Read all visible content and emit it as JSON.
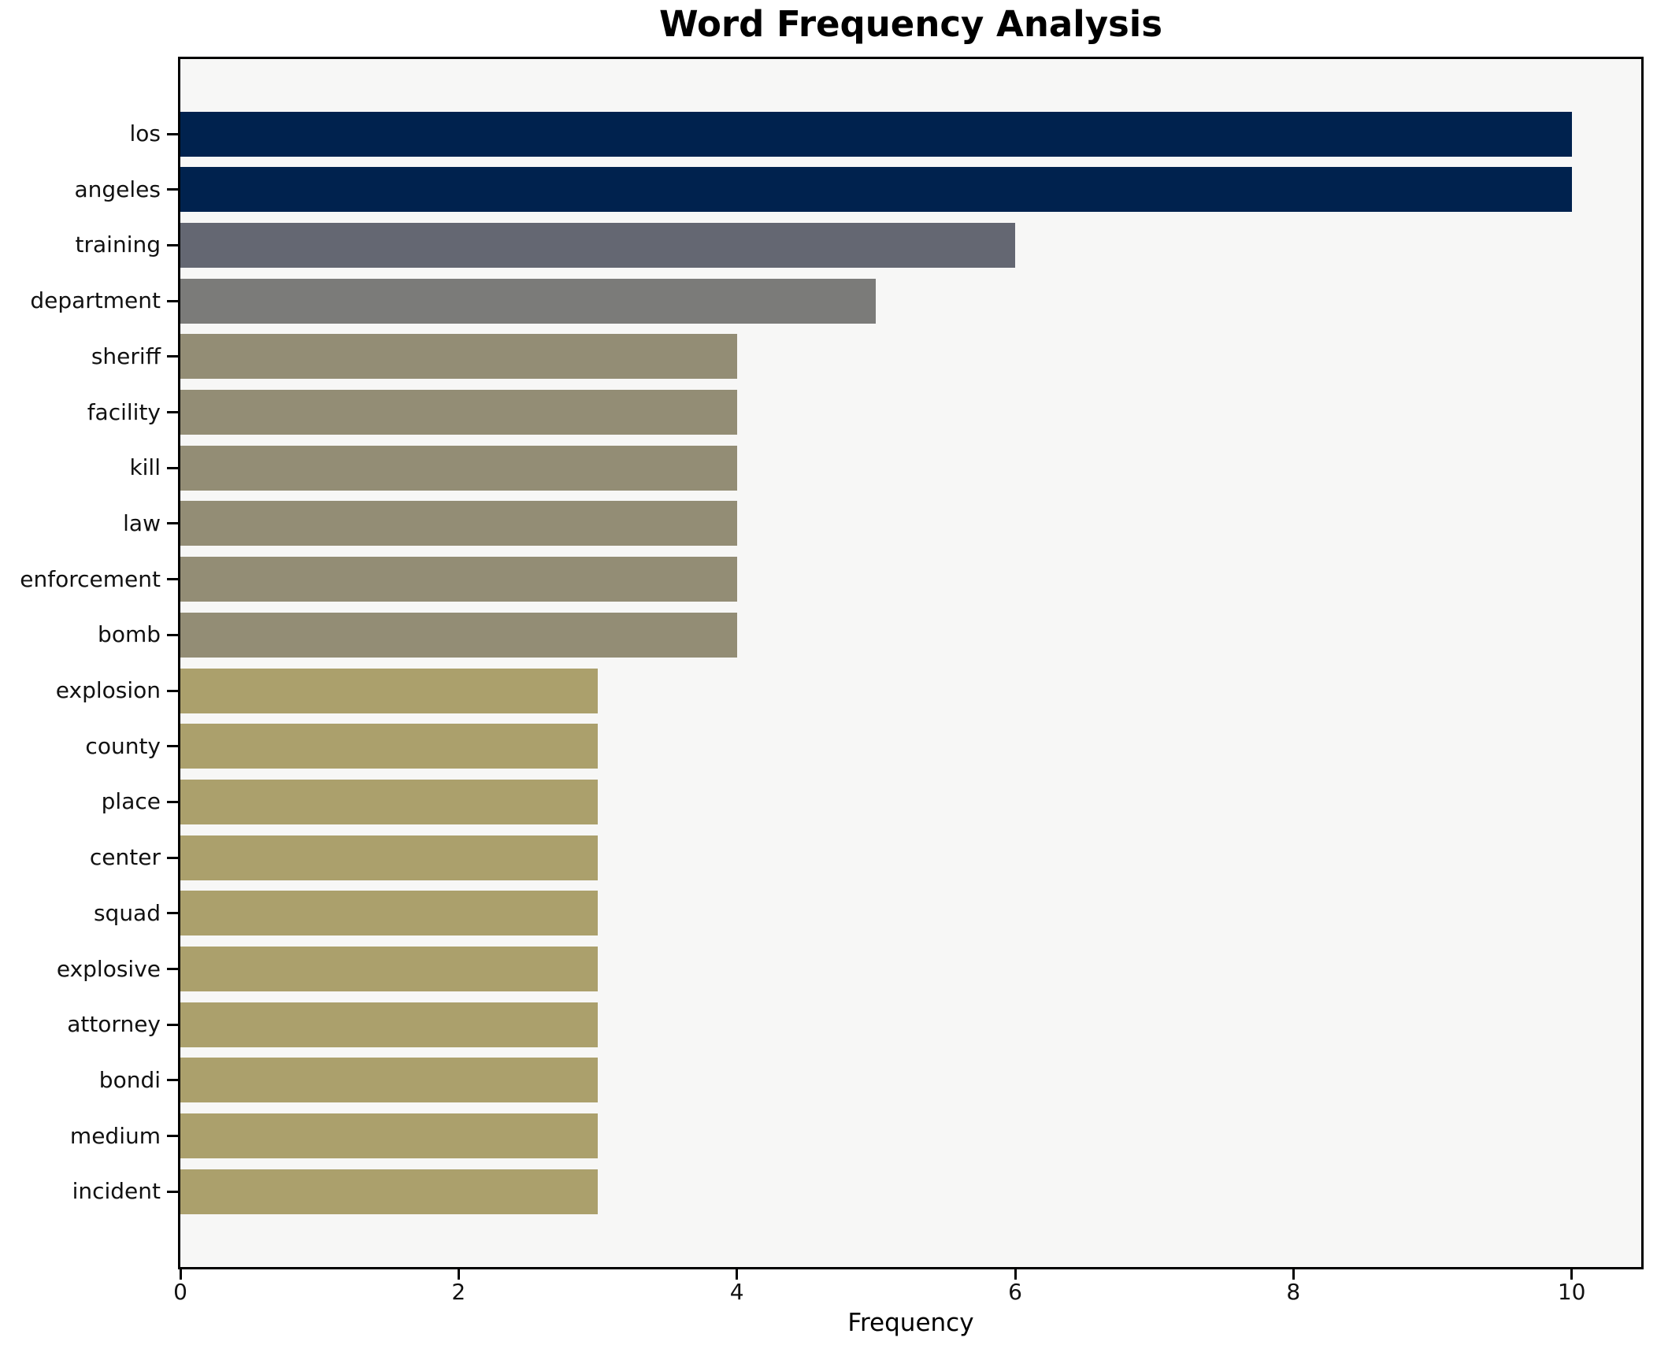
{
  "chart_data": {
    "type": "bar",
    "orientation": "horizontal",
    "title": "Word Frequency Analysis",
    "xlabel": "Frequency",
    "ylabel": "",
    "xlim": [
      0,
      10.5
    ],
    "xticks": [
      0,
      2,
      4,
      6,
      8,
      10
    ],
    "grid": false,
    "legend": "none",
    "plot_background": "#f7f7f6",
    "figure_background": "#ffffff",
    "spine_color": "#000000",
    "categories": [
      "los",
      "angeles",
      "training",
      "department",
      "sheriff",
      "facility",
      "kill",
      "law",
      "enforcement",
      "bomb",
      "explosion",
      "county",
      "place",
      "center",
      "squad",
      "explosive",
      "attorney",
      "bondi",
      "medium",
      "incident"
    ],
    "values": [
      10,
      10,
      6,
      5,
      4,
      4,
      4,
      4,
      4,
      4,
      3,
      3,
      3,
      3,
      3,
      3,
      3,
      3,
      3,
      3
    ],
    "bar_colors": [
      "#00224e",
      "#00224e",
      "#646772",
      "#7b7b79",
      "#938d75",
      "#938d75",
      "#938d75",
      "#938d75",
      "#938d75",
      "#938d75",
      "#aba06c",
      "#aba06c",
      "#aba06c",
      "#aba06c",
      "#aba06c",
      "#aba06c",
      "#aba06c",
      "#aba06c",
      "#aba06c",
      "#aba06c"
    ]
  }
}
